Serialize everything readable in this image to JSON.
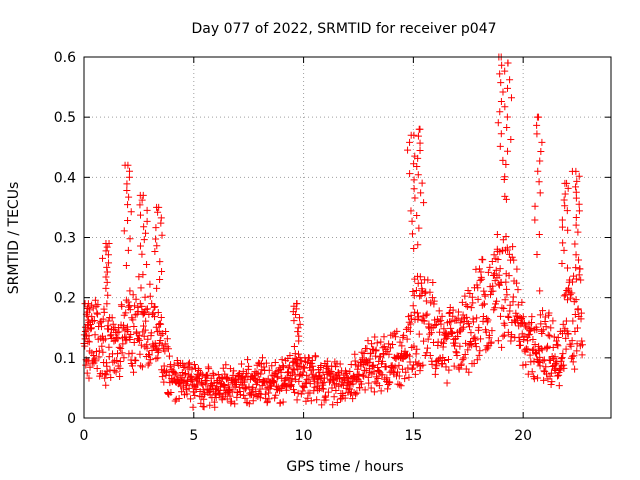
{
  "chart_data": {
    "type": "scatter",
    "title": "Day 077 of 2022, SRMTID for receiver p047",
    "xlabel": "GPS time / hours",
    "ylabel": "SRMTID / TECUs",
    "xlim": [
      0,
      24
    ],
    "ylim": [
      0,
      0.6
    ],
    "xticks": [
      0,
      5,
      10,
      15,
      20
    ],
    "yticks": [
      0,
      0.1,
      0.2,
      0.3,
      0.4,
      0.5,
      0.6
    ],
    "grid": true,
    "marker": "+",
    "color": "#ff0000",
    "series": [
      {
        "name": "SRMTID",
        "shape": {
          "x_range": [
            0,
            22.7
          ],
          "baseline": [
            [
              0,
              0.11
            ],
            [
              0.5,
              0.13
            ],
            [
              1,
              0.12
            ],
            [
              1.5,
              0.12
            ],
            [
              2,
              0.14
            ],
            [
              2.5,
              0.15
            ],
            [
              3,
              0.14
            ],
            [
              3.5,
              0.11
            ],
            [
              4,
              0.07
            ],
            [
              4.5,
              0.06
            ],
            [
              5,
              0.055
            ],
            [
              6,
              0.05
            ],
            [
              7,
              0.055
            ],
            [
              8,
              0.06
            ],
            [
              9,
              0.06
            ],
            [
              9.5,
              0.07
            ],
            [
              10,
              0.065
            ],
            [
              11,
              0.06
            ],
            [
              12,
              0.055
            ],
            [
              12.5,
              0.07
            ],
            [
              13,
              0.085
            ],
            [
              14,
              0.09
            ],
            [
              14.5,
              0.1
            ],
            [
              15,
              0.15
            ],
            [
              15.5,
              0.16
            ],
            [
              16,
              0.14
            ],
            [
              16.5,
              0.12
            ],
            [
              17,
              0.12
            ],
            [
              17.5,
              0.15
            ],
            [
              18,
              0.17
            ],
            [
              18.5,
              0.2
            ],
            [
              19,
              0.21
            ],
            [
              19.5,
              0.2
            ],
            [
              20,
              0.13
            ],
            [
              20.5,
              0.11
            ],
            [
              21,
              0.12
            ],
            [
              21.5,
              0.1
            ],
            [
              22,
              0.15
            ],
            [
              22.5,
              0.18
            ],
            [
              22.7,
              0.16
            ]
          ],
          "peaks": [
            [
              0.2,
              0.19
            ],
            [
              1.0,
              0.29
            ],
            [
              2.0,
              0.42
            ],
            [
              2.7,
              0.37
            ],
            [
              3.4,
              0.35
            ],
            [
              9.7,
              0.19
            ],
            [
              14.9,
              0.47
            ],
            [
              15.3,
              0.48
            ],
            [
              19.0,
              0.6
            ],
            [
              19.3,
              0.59
            ],
            [
              20.7,
              0.5
            ],
            [
              21.9,
              0.39
            ],
            [
              22.4,
              0.41
            ]
          ],
          "min": 0.0,
          "approx_points": 1400
        }
      }
    ]
  }
}
